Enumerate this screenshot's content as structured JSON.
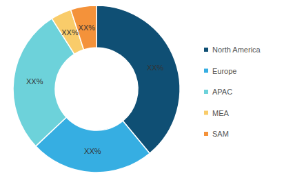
{
  "chart_data": {
    "type": "donut",
    "categories": [
      "North America",
      "Europe",
      "APAC",
      "MEA",
      "SAM"
    ],
    "values": [
      39,
      24,
      28,
      4,
      5
    ],
    "value_labels": [
      "XX%",
      "XX%",
      "XX%",
      "XX%",
      "XX%"
    ],
    "colors": [
      "#0f4f74",
      "#36aee2",
      "#6dd2da",
      "#f9cc6a",
      "#f4923a"
    ],
    "data_labels": true,
    "legend": "right"
  }
}
